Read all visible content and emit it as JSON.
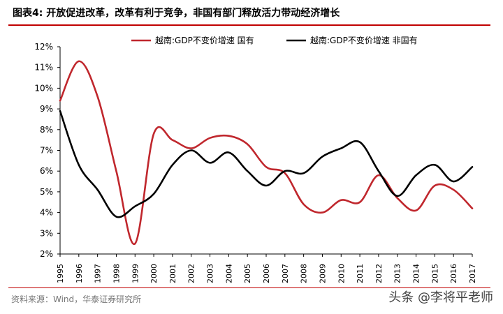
{
  "header": {
    "title": "图表4:   开放促进改革，改革有利于竞争，非国有部门释放活力带动经济增长"
  },
  "footer": {
    "source": "资料来源：Wind，华泰证券研究所",
    "watermark": "头条 @李将平老师"
  },
  "colors": {
    "accent": "#c00000",
    "series_state": "#c0272d",
    "series_nonstate": "#000000"
  },
  "chart_data": {
    "type": "line",
    "x": [
      "1995",
      "1996",
      "1997",
      "1998",
      "1999",
      "2000",
      "2001",
      "2002",
      "2003",
      "2004",
      "2005",
      "2006",
      "2007",
      "2008",
      "2009",
      "2010",
      "2011",
      "2012",
      "2013",
      "2014",
      "2015",
      "2016",
      "2017"
    ],
    "series": [
      {
        "name": "越南:GDP不变价增速 国有",
        "color": "#c0272d",
        "values": [
          9.4,
          11.3,
          9.6,
          6.0,
          2.5,
          7.8,
          7.5,
          7.1,
          7.6,
          7.7,
          7.3,
          6.2,
          5.9,
          4.4,
          4.0,
          4.6,
          4.5,
          5.8,
          4.7,
          4.1,
          5.3,
          5.1,
          4.2
        ]
      },
      {
        "name": "越南:GDP不变价增速 非国有",
        "color": "#000000",
        "values": [
          8.9,
          6.3,
          5.1,
          3.8,
          4.3,
          4.9,
          6.3,
          7.0,
          6.4,
          6.9,
          6.0,
          5.3,
          6.0,
          5.9,
          6.7,
          7.1,
          7.4,
          6.0,
          4.8,
          5.8,
          6.3,
          5.5,
          6.2
        ]
      }
    ],
    "ylim": [
      2,
      12
    ],
    "yticks": [
      "2%",
      "3%",
      "4%",
      "5%",
      "6%",
      "7%",
      "8%",
      "9%",
      "10%",
      "11%",
      "12%"
    ],
    "legend": "top",
    "grid": false
  }
}
